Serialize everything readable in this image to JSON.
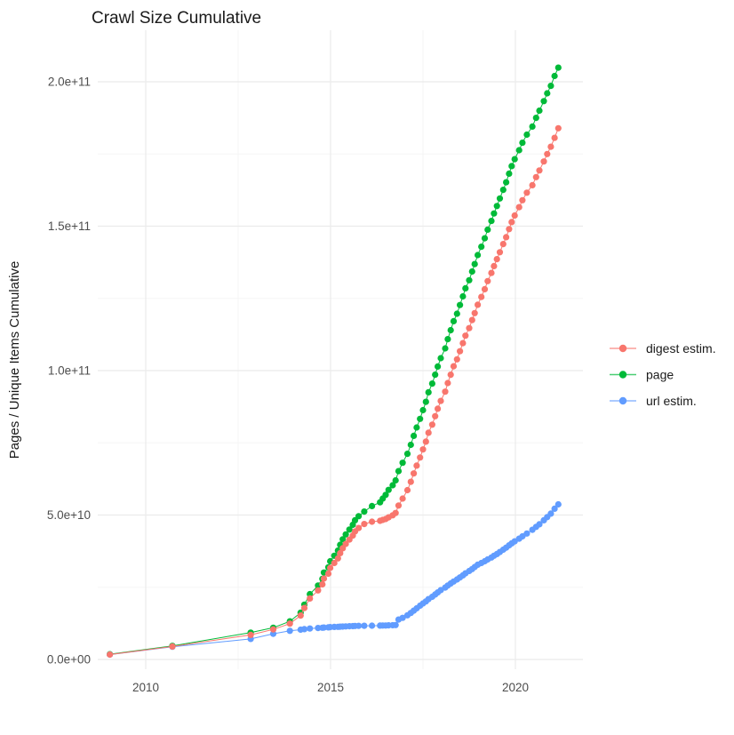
{
  "page": {
    "title": "Crawl Size Cumulative"
  },
  "chart_data": {
    "type": "scatter",
    "title": "Crawl Size Cumulative",
    "xlabel": "",
    "ylabel": "Pages / Unique Items Cumulative",
    "legend_position": "right",
    "grid": "on",
    "theme": {
      "background": "#ffffff",
      "major_grid_color": "#ebebeb",
      "minor_grid_color": "#f5f5f5",
      "tick_label_color": "#4d4d4d",
      "text_color": "#1a1a1a"
    },
    "x_axis": {
      "ticks": [
        {
          "label": "2010",
          "year": 2010
        },
        {
          "label": "2015",
          "year": 2015
        },
        {
          "label": "2020",
          "year": 2020
        }
      ],
      "minor_tick_years": [
        2012.5,
        2017.5
      ],
      "range_years": [
        2008.7,
        2021.85
      ]
    },
    "y_axis": {
      "ticks": [
        {
          "label": "0.0e+00",
          "value_e9": 0
        },
        {
          "label": "5.0e+10",
          "value_e9": 50
        },
        {
          "label": "1.0e+11",
          "value_e9": 100
        },
        {
          "label": "1.5e+11",
          "value_e9": 150
        },
        {
          "label": "2.0e+11",
          "value_e9": 200
        }
      ],
      "minor_tick_values_e9": [
        25,
        75,
        125,
        175
      ],
      "range_e9": [
        -3.4,
        218
      ]
    },
    "legend": [
      {
        "name": "digest estim.",
        "key": "digest",
        "color": "#F8766D"
      },
      {
        "name": "page",
        "key": "page",
        "color": "#00BA38"
      },
      {
        "name": "url estim.",
        "key": "url",
        "color": "#619CFF"
      }
    ],
    "series_draw_order": [
      "page",
      "url",
      "digest"
    ],
    "point_format": [
      "year",
      "page_e9",
      "digest_e9",
      "url_e9"
    ],
    "points": [
      [
        2009.03,
        1.8,
        1.7,
        1.7
      ],
      [
        2010.72,
        4.7,
        4.5,
        4.4
      ],
      [
        2012.84,
        9.3,
        8.5,
        7.1
      ],
      [
        2013.45,
        11.0,
        10.4,
        8.9
      ],
      [
        2013.9,
        13.2,
        12.4,
        9.9
      ],
      [
        2014.19,
        16.2,
        15.2,
        10.3
      ],
      [
        2014.29,
        19.0,
        17.8,
        10.5
      ],
      [
        2014.44,
        22.6,
        21.1,
        10.7
      ],
      [
        2014.66,
        25.6,
        23.9,
        10.9
      ],
      [
        2014.78,
        27.9,
        26.0,
        11.0
      ],
      [
        2014.82,
        30.1,
        28.0,
        11.05
      ],
      [
        2014.94,
        31.9,
        29.7,
        11.1
      ],
      [
        2014.99,
        34.0,
        31.7,
        11.2
      ],
      [
        2015.1,
        35.9,
        33.4,
        11.25
      ],
      [
        2015.2,
        37.7,
        35.0,
        11.3
      ],
      [
        2015.26,
        39.7,
        36.8,
        11.35
      ],
      [
        2015.33,
        41.6,
        38.5,
        11.4
      ],
      [
        2015.41,
        43.3,
        40.0,
        11.45
      ],
      [
        2015.51,
        45.0,
        41.5,
        11.5
      ],
      [
        2015.6,
        46.6,
        42.9,
        11.55
      ],
      [
        2015.66,
        48.2,
        44.3,
        11.6
      ],
      [
        2015.76,
        49.6,
        45.5,
        11.62
      ],
      [
        2015.91,
        51.2,
        46.9,
        11.65
      ],
      [
        2016.12,
        53.1,
        47.7,
        11.7
      ],
      [
        2016.34,
        54.4,
        48.0,
        11.72
      ],
      [
        2016.41,
        55.7,
        48.3,
        11.74
      ],
      [
        2016.49,
        57.0,
        48.6,
        11.76
      ],
      [
        2016.57,
        58.7,
        49.2,
        11.8
      ],
      [
        2016.68,
        60.3,
        49.9,
        11.85
      ],
      [
        2016.76,
        62.0,
        50.7,
        11.9
      ],
      [
        2016.84,
        65.2,
        53.3,
        13.8
      ],
      [
        2016.95,
        68.1,
        55.7,
        14.4
      ],
      [
        2017.08,
        71.2,
        58.6,
        15.3
      ],
      [
        2017.17,
        74.3,
        61.5,
        16.1
      ],
      [
        2017.25,
        77.4,
        64.4,
        16.9
      ],
      [
        2017.33,
        80.3,
        67.1,
        17.7
      ],
      [
        2017.42,
        83.3,
        69.9,
        18.6
      ],
      [
        2017.5,
        86.3,
        72.7,
        19.4
      ],
      [
        2017.58,
        89.2,
        75.4,
        20.1
      ],
      [
        2017.65,
        92.5,
        78.5,
        20.9
      ],
      [
        2017.75,
        95.5,
        81.3,
        21.7
      ],
      [
        2017.83,
        98.6,
        84.2,
        22.5
      ],
      [
        2017.9,
        101.4,
        86.8,
        23.2
      ],
      [
        2017.98,
        104.3,
        89.5,
        24.0
      ],
      [
        2018.1,
        107.7,
        92.7,
        24.9
      ],
      [
        2018.17,
        110.9,
        95.7,
        25.6
      ],
      [
        2018.25,
        114.0,
        98.6,
        26.3
      ],
      [
        2018.33,
        117.1,
        101.5,
        27.0
      ],
      [
        2018.42,
        119.7,
        103.9,
        27.7
      ],
      [
        2018.5,
        122.7,
        106.7,
        28.4
      ],
      [
        2018.58,
        125.7,
        109.5,
        29.1
      ],
      [
        2018.65,
        128.5,
        112.1,
        29.8
      ],
      [
        2018.75,
        131.3,
        114.7,
        30.6
      ],
      [
        2018.83,
        134.3,
        117.5,
        31.3
      ],
      [
        2018.9,
        136.9,
        119.9,
        32.0
      ],
      [
        2018.98,
        140.0,
        122.8,
        32.8
      ],
      [
        2019.08,
        142.9,
        125.5,
        33.4
      ],
      [
        2019.17,
        145.8,
        128.2,
        34.0
      ],
      [
        2019.25,
        148.8,
        131.0,
        34.6
      ],
      [
        2019.35,
        151.8,
        133.8,
        35.3
      ],
      [
        2019.42,
        154.4,
        136.2,
        35.9
      ],
      [
        2019.5,
        157.0,
        138.6,
        36.5
      ],
      [
        2019.58,
        159.6,
        141.0,
        37.2
      ],
      [
        2019.67,
        162.6,
        143.8,
        38.0
      ],
      [
        2019.75,
        165.2,
        146.2,
        38.7
      ],
      [
        2019.83,
        168.2,
        149.0,
        39.5
      ],
      [
        2019.9,
        170.8,
        151.4,
        40.2
      ],
      [
        2019.98,
        173.2,
        153.7,
        40.9
      ],
      [
        2020.1,
        176.3,
        156.6,
        41.8
      ],
      [
        2020.19,
        178.9,
        159.0,
        42.6
      ],
      [
        2020.31,
        181.7,
        161.6,
        43.6
      ],
      [
        2020.46,
        184.5,
        164.2,
        44.9
      ],
      [
        2020.56,
        187.5,
        167.0,
        45.9
      ],
      [
        2020.65,
        190.0,
        169.3,
        46.8
      ],
      [
        2020.77,
        193.3,
        172.4,
        48.2
      ],
      [
        2020.86,
        196.0,
        175.0,
        49.3
      ],
      [
        2020.96,
        198.6,
        177.5,
        50.5
      ],
      [
        2021.06,
        202.0,
        180.6,
        52.2
      ],
      [
        2021.16,
        204.9,
        183.9,
        53.7
      ]
    ]
  }
}
